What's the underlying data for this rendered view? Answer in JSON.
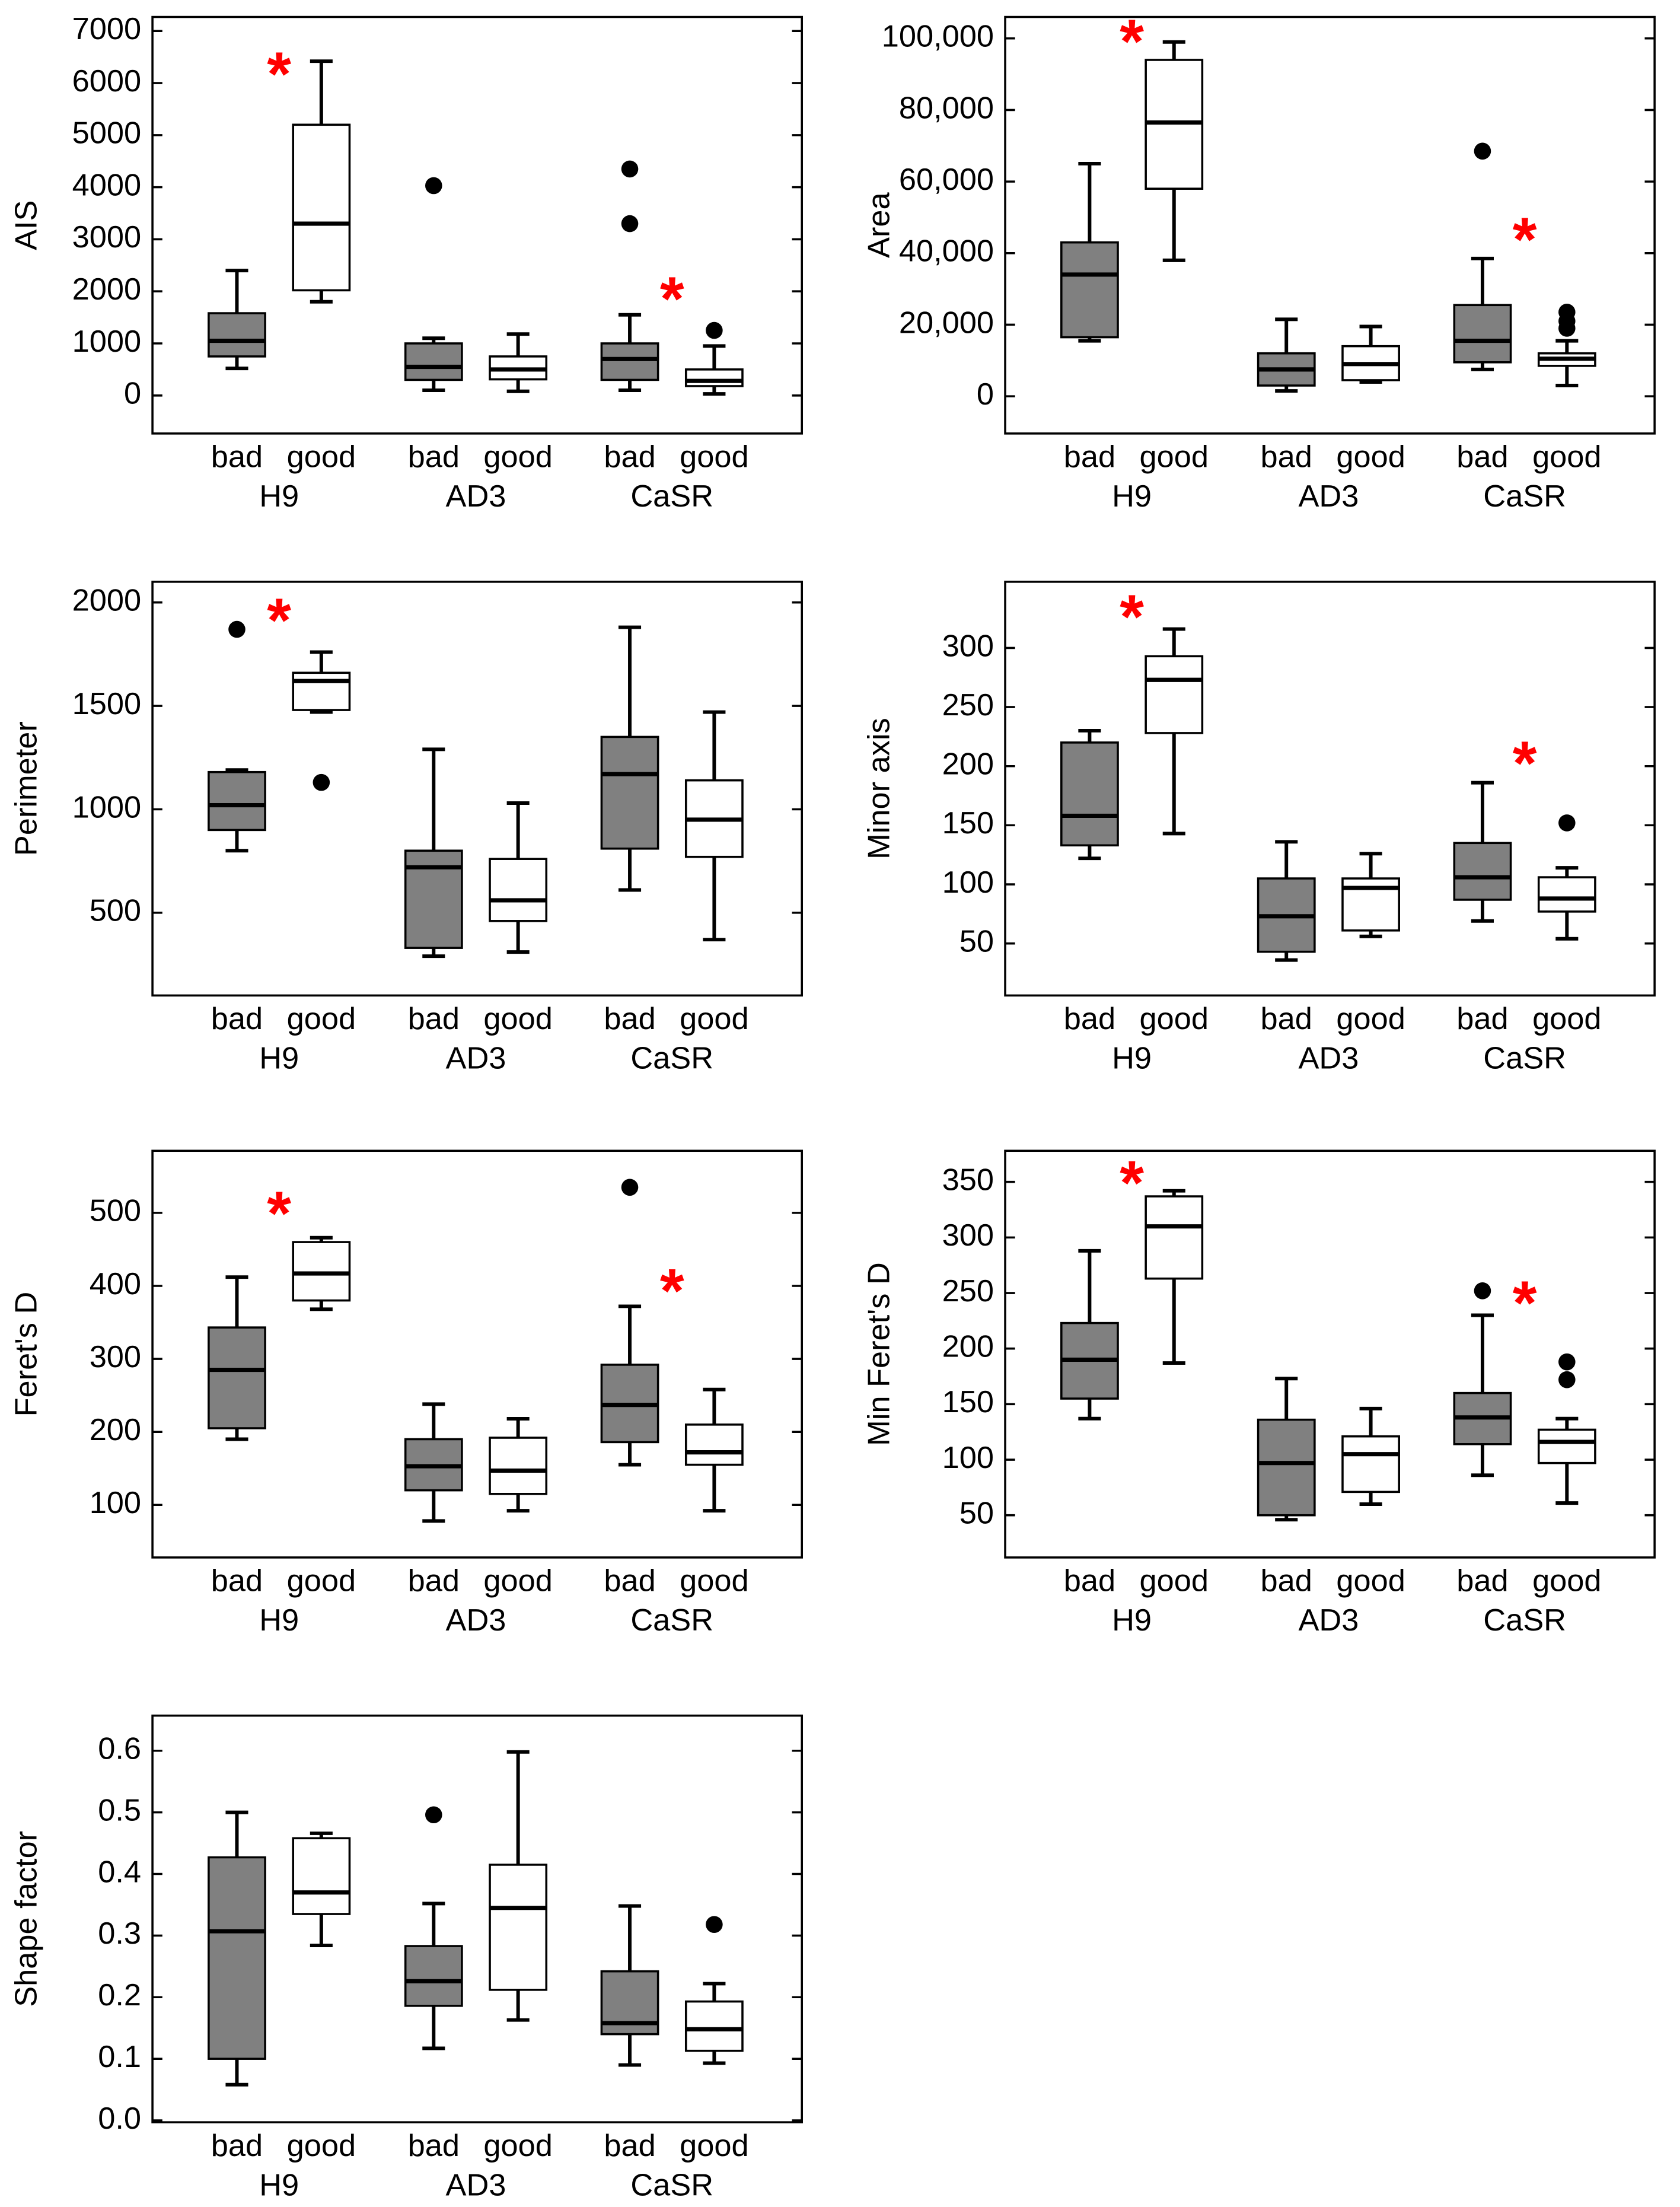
{
  "chart_data": [
    {
      "type": "box",
      "ylabel": "AIS",
      "ylim": [
        -730,
        7270
      ],
      "yticks": [
        0,
        1000,
        2000,
        3000,
        4000,
        5000,
        6000,
        7000
      ],
      "categories": [
        "bad",
        "good",
        "bad",
        "good",
        "bad",
        "good"
      ],
      "groups": [
        "H9",
        "AD3",
        "CaSR"
      ],
      "colors": [
        "#808080",
        "#ffffff"
      ],
      "boxes": [
        {
          "whislo": 520,
          "q1": 750,
          "med": 1050,
          "q3": 1580,
          "whishi": 2400,
          "fliers": []
        },
        {
          "whislo": 1800,
          "q1": 2020,
          "med": 3300,
          "q3": 5200,
          "whishi": 6420,
          "fliers": []
        },
        {
          "whislo": 100,
          "q1": 300,
          "med": 550,
          "q3": 1000,
          "whishi": 1100,
          "fliers": [
            4030
          ]
        },
        {
          "whislo": 80,
          "q1": 310,
          "med": 500,
          "q3": 750,
          "whishi": 1180,
          "fliers": []
        },
        {
          "whislo": 100,
          "q1": 300,
          "med": 700,
          "q3": 1000,
          "whishi": 1550,
          "fliers": [
            3300,
            4350
          ]
        },
        {
          "whislo": 30,
          "q1": 180,
          "med": 280,
          "q3": 500,
          "whishi": 950,
          "fliers": [
            1250
          ]
        }
      ],
      "annotations": [
        {
          "text": "*",
          "x": 0.5,
          "y": 6300,
          "color": "#ff0000"
        },
        {
          "text": "*",
          "x": 4.5,
          "y": 1980,
          "color": "#ff0000"
        }
      ]
    },
    {
      "type": "box",
      "ylabel": "Area",
      "ylim": [
        -10400,
        106000
      ],
      "yticks": [
        0,
        {
          "value": 20000,
          "label": "20,000"
        },
        {
          "value": 40000,
          "label": "40,000"
        },
        {
          "value": 60000,
          "label": "60,000"
        },
        {
          "value": 80000,
          "label": "80,000"
        },
        {
          "value": 100000,
          "label": "100,000"
        }
      ],
      "categories": [
        "bad",
        "good",
        "bad",
        "good",
        "bad",
        "good"
      ],
      "groups": [
        "H9",
        "AD3",
        "CaSR"
      ],
      "colors": [
        "#808080",
        "#ffffff"
      ],
      "boxes": [
        {
          "whislo": 15500,
          "q1": 16500,
          "med": 34000,
          "q3": 43000,
          "whishi": 65000,
          "fliers": []
        },
        {
          "whislo": 38000,
          "q1": 58000,
          "med": 76500,
          "q3": 94000,
          "whishi": 99000,
          "fliers": []
        },
        {
          "whislo": 1500,
          "q1": 3000,
          "med": 7500,
          "q3": 12000,
          "whishi": 21500,
          "fliers": []
        },
        {
          "whislo": 4000,
          "q1": 4500,
          "med": 9000,
          "q3": 14000,
          "whishi": 19500,
          "fliers": []
        },
        {
          "whislo": 7500,
          "q1": 9500,
          "med": 15500,
          "q3": 25500,
          "whishi": 38500,
          "fliers": [
            68500
          ]
        },
        {
          "whislo": 3000,
          "q1": 8500,
          "med": 10500,
          "q3": 12000,
          "whishi": 15500,
          "fliers": [
            19000,
            21000,
            23500
          ]
        }
      ],
      "annotations": [
        {
          "text": "*",
          "x": 0.5,
          "y": 101000,
          "color": "#ff0000"
        },
        {
          "text": "*",
          "x": 4.5,
          "y": 45600,
          "color": "#ff0000"
        }
      ]
    },
    {
      "type": "box",
      "ylabel": "Perimeter",
      "ylim": [
        100,
        2100
      ],
      "yticks": [
        500,
        1000,
        1500,
        2000
      ],
      "categories": [
        "bad",
        "good",
        "bad",
        "good",
        "bad",
        "good"
      ],
      "groups": [
        "H9",
        "AD3",
        "CaSR"
      ],
      "colors": [
        "#808080",
        "#ffffff"
      ],
      "boxes": [
        {
          "whislo": 800,
          "q1": 900,
          "med": 1020,
          "q3": 1180,
          "whishi": 1190,
          "fliers": [
            1870
          ]
        },
        {
          "whislo": 1470,
          "q1": 1480,
          "med": 1620,
          "q3": 1660,
          "whishi": 1760,
          "fliers": [
            1130
          ]
        },
        {
          "whislo": 290,
          "q1": 330,
          "med": 720,
          "q3": 800,
          "whishi": 1290,
          "fliers": []
        },
        {
          "whislo": 310,
          "q1": 460,
          "med": 560,
          "q3": 760,
          "whishi": 1030,
          "fliers": []
        },
        {
          "whislo": 610,
          "q1": 810,
          "med": 1170,
          "q3": 1350,
          "whishi": 1880,
          "fliers": []
        },
        {
          "whislo": 370,
          "q1": 770,
          "med": 950,
          "q3": 1140,
          "whishi": 1470,
          "fliers": []
        }
      ],
      "annotations": [
        {
          "text": "*",
          "x": 0.5,
          "y": 1945,
          "color": "#ff0000"
        }
      ]
    },
    {
      "type": "box",
      "ylabel": "Minor axis",
      "ylim": [
        6,
        356
      ],
      "yticks": [
        50,
        100,
        150,
        200,
        250,
        300
      ],
      "categories": [
        "bad",
        "good",
        "bad",
        "good",
        "bad",
        "good"
      ],
      "groups": [
        "H9",
        "AD3",
        "CaSR"
      ],
      "colors": [
        "#808080",
        "#ffffff"
      ],
      "boxes": [
        {
          "whislo": 122,
          "q1": 133,
          "med": 158,
          "q3": 220,
          "whishi": 230,
          "fliers": []
        },
        {
          "whislo": 143,
          "q1": 228,
          "med": 273,
          "q3": 293,
          "whishi": 316,
          "fliers": []
        },
        {
          "whislo": 36,
          "q1": 43,
          "med": 73,
          "q3": 105,
          "whishi": 136,
          "fliers": []
        },
        {
          "whislo": 56,
          "q1": 61,
          "med": 97,
          "q3": 105,
          "whishi": 126,
          "fliers": []
        },
        {
          "whislo": 69,
          "q1": 87,
          "med": 106,
          "q3": 135,
          "whishi": 186,
          "fliers": []
        },
        {
          "whislo": 54,
          "q1": 77,
          "med": 88,
          "q3": 106,
          "whishi": 114,
          "fliers": [
            152
          ]
        }
      ],
      "annotations": [
        {
          "text": "*",
          "x": 0.5,
          "y": 332,
          "color": "#ff0000"
        },
        {
          "text": "*",
          "x": 4.5,
          "y": 208,
          "color": "#ff0000"
        }
      ]
    },
    {
      "type": "box",
      "ylabel": "Feret's D",
      "ylim": [
        28,
        585
      ],
      "yticks": [
        100,
        200,
        300,
        400,
        500
      ],
      "categories": [
        "bad",
        "good",
        "bad",
        "good",
        "bad",
        "good"
      ],
      "groups": [
        "H9",
        "AD3",
        "CaSR"
      ],
      "colors": [
        "#808080",
        "#ffffff"
      ],
      "boxes": [
        {
          "whislo": 190,
          "q1": 205,
          "med": 285,
          "q3": 343,
          "whishi": 412,
          "fliers": []
        },
        {
          "whislo": 368,
          "q1": 380,
          "med": 417,
          "q3": 460,
          "whishi": 466,
          "fliers": []
        },
        {
          "whislo": 78,
          "q1": 120,
          "med": 153,
          "q3": 190,
          "whishi": 238,
          "fliers": []
        },
        {
          "whislo": 92,
          "q1": 115,
          "med": 147,
          "q3": 192,
          "whishi": 218,
          "fliers": []
        },
        {
          "whislo": 155,
          "q1": 186,
          "med": 237,
          "q3": 292,
          "whishi": 372,
          "fliers": [
            535
          ]
        },
        {
          "whislo": 92,
          "q1": 155,
          "med": 172,
          "q3": 210,
          "whishi": 258,
          "fliers": []
        }
      ],
      "annotations": [
        {
          "text": "*",
          "x": 0.5,
          "y": 508,
          "color": "#ff0000"
        },
        {
          "text": "*",
          "x": 4.5,
          "y": 402,
          "color": "#ff0000"
        }
      ]
    },
    {
      "type": "box",
      "ylabel": "Min Feret's D",
      "ylim": [
        12,
        378
      ],
      "yticks": [
        50,
        100,
        150,
        200,
        250,
        300,
        350
      ],
      "categories": [
        "bad",
        "good",
        "bad",
        "good",
        "bad",
        "good"
      ],
      "groups": [
        "H9",
        "AD3",
        "CaSR"
      ],
      "colors": [
        "#808080",
        "#ffffff"
      ],
      "boxes": [
        {
          "whislo": 137,
          "q1": 155,
          "med": 190,
          "q3": 223,
          "whishi": 288,
          "fliers": []
        },
        {
          "whislo": 187,
          "q1": 263,
          "med": 310,
          "q3": 337,
          "whishi": 342,
          "fliers": []
        },
        {
          "whislo": 46,
          "q1": 50,
          "med": 97,
          "q3": 136,
          "whishi": 173,
          "fliers": []
        },
        {
          "whislo": 60,
          "q1": 71,
          "med": 105,
          "q3": 121,
          "whishi": 146,
          "fliers": []
        },
        {
          "whislo": 86,
          "q1": 114,
          "med": 138,
          "q3": 160,
          "whishi": 230,
          "fliers": [
            252
          ]
        },
        {
          "whislo": 61,
          "q1": 97,
          "med": 116,
          "q3": 127,
          "whishi": 137,
          "fliers": [
            172,
            188
          ]
        }
      ],
      "annotations": [
        {
          "text": "*",
          "x": 0.5,
          "y": 355,
          "color": "#ff0000"
        },
        {
          "text": "*",
          "x": 4.5,
          "y": 247,
          "color": "#ff0000"
        }
      ]
    },
    {
      "type": "box",
      "ylabel": "Shape factor",
      "ylim": [
        -0.003,
        0.657
      ],
      "yticks": [
        {
          "value": 0,
          "label": "0.0"
        },
        0.1,
        0.2,
        0.3,
        0.4,
        0.5,
        0.6
      ],
      "categories": [
        "bad",
        "good",
        "bad",
        "good",
        "bad",
        "good"
      ],
      "groups": [
        "H9",
        "AD3",
        "CaSR"
      ],
      "colors": [
        "#808080",
        "#ffffff"
      ],
      "boxes": [
        {
          "whislo": 0.058,
          "q1": 0.1,
          "med": 0.307,
          "q3": 0.427,
          "whishi": 0.5,
          "fliers": []
        },
        {
          "whislo": 0.284,
          "q1": 0.335,
          "med": 0.37,
          "q3": 0.458,
          "whishi": 0.466,
          "fliers": []
        },
        {
          "whislo": 0.117,
          "q1": 0.186,
          "med": 0.226,
          "q3": 0.283,
          "whishi": 0.352,
          "fliers": [
            0.496
          ]
        },
        {
          "whislo": 0.163,
          "q1": 0.212,
          "med": 0.345,
          "q3": 0.415,
          "whishi": 0.598,
          "fliers": []
        },
        {
          "whislo": 0.09,
          "q1": 0.14,
          "med": 0.158,
          "q3": 0.242,
          "whishi": 0.348,
          "fliers": []
        },
        {
          "whislo": 0.093,
          "q1": 0.113,
          "med": 0.148,
          "q3": 0.193,
          "whishi": 0.222,
          "fliers": [
            0.318
          ]
        }
      ],
      "annotations": []
    }
  ]
}
